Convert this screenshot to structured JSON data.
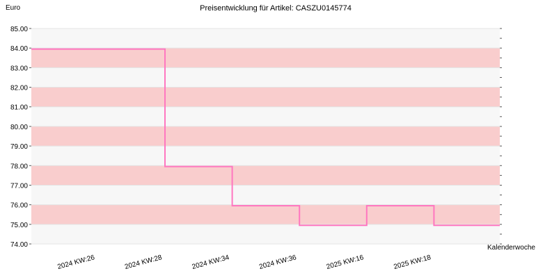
{
  "chart_data": {
    "type": "line",
    "title": "Preisentwicklung für Artikel: CASZU0145774",
    "ylabel": "Euro",
    "xlabel": "Kalenderwoche",
    "ylim": [
      74.0,
      85.0
    ],
    "y_ticks": [
      "74.00",
      "75.00",
      "76.00",
      "77.00",
      "78.00",
      "79.00",
      "80.00",
      "81.00",
      "82.00",
      "83.00",
      "84.00",
      "85.00"
    ],
    "x_tick_labels": [
      "2024 KW:26",
      "2024 KW:28",
      "2024 KW:34",
      "2024 KW:36",
      "2025 KW:16",
      "2025 KW:18"
    ],
    "step": true,
    "series": [
      {
        "values": [
          83.95,
          77.95,
          75.95,
          74.95,
          75.95,
          74.95
        ],
        "color": "#ff77c0"
      }
    ],
    "grid": true,
    "band_colors": [
      "#f7f7f7",
      "#f9cdcd"
    ]
  }
}
